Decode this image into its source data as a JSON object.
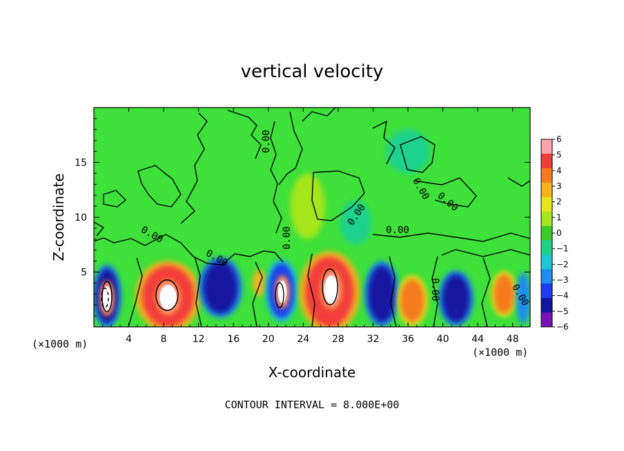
{
  "chart_data": {
    "type": "heatmap",
    "title": "vertical velocity",
    "xlabel": "X-coordinate",
    "ylabel": "Z-coordinate",
    "x_unit": "(×1000 m)",
    "y_unit": "(×1000 m)",
    "footer": "CONTOUR INTERVAL = 8.000E+00",
    "xlim": [
      0,
      50
    ],
    "ylim": [
      0,
      20
    ],
    "x_ticks": [
      4,
      8,
      12,
      16,
      20,
      24,
      28,
      32,
      36,
      40,
      44,
      48
    ],
    "y_ticks": [
      5,
      10,
      15
    ],
    "colorbar": {
      "min": -6,
      "max": 6,
      "ticks": [
        6,
        5,
        4,
        3,
        2,
        1,
        0,
        -1,
        -2,
        -3,
        -4,
        -5,
        -6
      ],
      "colors": [
        "#f7a6b0",
        "#f23c3c",
        "#f57a1e",
        "#f5b41e",
        "#e6e61e",
        "#a6e61e",
        "#3ccc28",
        "#1ed28c",
        "#1ec8d2",
        "#1e8cf0",
        "#1e3cf0",
        "#1414a0",
        "#7814b4"
      ]
    },
    "background_color": "#3ee03a",
    "features": [
      {
        "x": 1.5,
        "z": 2.8,
        "rx": 1.3,
        "rz": 2.5,
        "value": -5
      },
      {
        "x": 1.5,
        "z": 2.6,
        "rx": 0.6,
        "rz": 1.4,
        "value": 6
      },
      {
        "x": 8.5,
        "z": 2.8,
        "rx": 3.0,
        "rz": 2.8,
        "value": 5
      },
      {
        "x": 8.5,
        "z": 2.7,
        "rx": 1.2,
        "rz": 1.4,
        "value": 6
      },
      {
        "x": 14.5,
        "z": 3.6,
        "rx": 2.0,
        "rz": 2.4,
        "value": -5
      },
      {
        "x": 19.0,
        "z": 4.0,
        "rx": 0.8,
        "rz": 1.2,
        "value": 3
      },
      {
        "x": 21.5,
        "z": 3.3,
        "rx": 1.5,
        "rz": 2.5,
        "value": -4
      },
      {
        "x": 21.6,
        "z": 3.2,
        "rx": 0.6,
        "rz": 1.3,
        "value": 6
      },
      {
        "x": 27.0,
        "z": 3.2,
        "rx": 2.8,
        "rz": 3.2,
        "value": 5
      },
      {
        "x": 27.2,
        "z": 3.4,
        "rx": 1.0,
        "rz": 1.6,
        "value": 6
      },
      {
        "x": 33.0,
        "z": 3.0,
        "rx": 1.6,
        "rz": 2.6,
        "value": -5
      },
      {
        "x": 36.5,
        "z": 2.4,
        "rx": 1.4,
        "rz": 2.0,
        "value": 4
      },
      {
        "x": 41.5,
        "z": 2.6,
        "rx": 1.6,
        "rz": 2.2,
        "value": -5
      },
      {
        "x": 47.0,
        "z": 3.0,
        "rx": 1.2,
        "rz": 1.8,
        "value": 4
      },
      {
        "x": 49.2,
        "z": 2.6,
        "rx": 0.8,
        "rz": 2.4,
        "value": -3
      },
      {
        "x": 24.5,
        "z": 11.0,
        "rx": 2.0,
        "rz": 3.0,
        "value": 1
      },
      {
        "x": 30.0,
        "z": 9.5,
        "rx": 1.8,
        "rz": 2.0,
        "value": -1
      },
      {
        "x": 36.0,
        "z": 16.0,
        "rx": 2.5,
        "rz": 2.0,
        "value": -1
      }
    ],
    "contour_labels": [
      "0.00",
      "0.00",
      "0.00",
      "0.00",
      "0.00",
      "0.00",
      "0.00",
      "0.00",
      "0.00",
      "0.00"
    ]
  }
}
